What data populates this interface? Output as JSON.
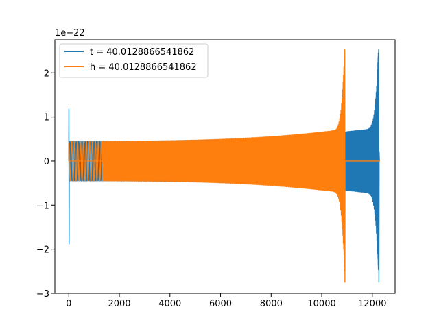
{
  "chart_data": {
    "type": "line",
    "title": "",
    "xlabel": "",
    "ylabel": "",
    "y_offset_label": "1e−22",
    "xlim": [
      -550,
      12900
    ],
    "ylim": [
      -3.0,
      2.75
    ],
    "x_ticks": [
      0,
      2000,
      4000,
      6000,
      8000,
      10000,
      12000
    ],
    "x_tick_labels": [
      "0",
      "2000",
      "4000",
      "6000",
      "8000",
      "10000",
      "12000"
    ],
    "y_ticks": [
      -3,
      -2,
      -1,
      0,
      1,
      2
    ],
    "y_tick_labels": [
      "−3",
      "−2",
      "−1",
      "0",
      "1",
      "2"
    ],
    "grid": false,
    "legend": {
      "placement": "upper-left",
      "entries": [
        {
          "label": "t = 40.0128866541862",
          "color": "#1f77b4"
        },
        {
          "label": "h = 40.0128866541862",
          "color": "#ff7f0e"
        }
      ]
    },
    "series": [
      {
        "color": "#1f77b4",
        "description_points": {
          "x_start": 0,
          "x_end": 12280,
          "initial_spike_max": 1.18,
          "initial_spike_min": -1.88,
          "envelope_start": 0.45,
          "envelope_near_end": 0.75,
          "final_peak": 2.52,
          "final_trough": -2.75
        }
      },
      {
        "color": "#ff7f0e",
        "description_points": {
          "x_start": 0,
          "x_end": 12280,
          "flat_until": 1320,
          "envelope_start": 0.45,
          "merger_x": 10920,
          "final_peak": 2.52,
          "final_trough": -2.75,
          "flat_after_merger": 0.0
        }
      }
    ]
  },
  "colors": {
    "series_t": "#1f77b4",
    "series_h": "#ff7f0e",
    "axis": "#000000",
    "legend_border": "#cccccc"
  }
}
